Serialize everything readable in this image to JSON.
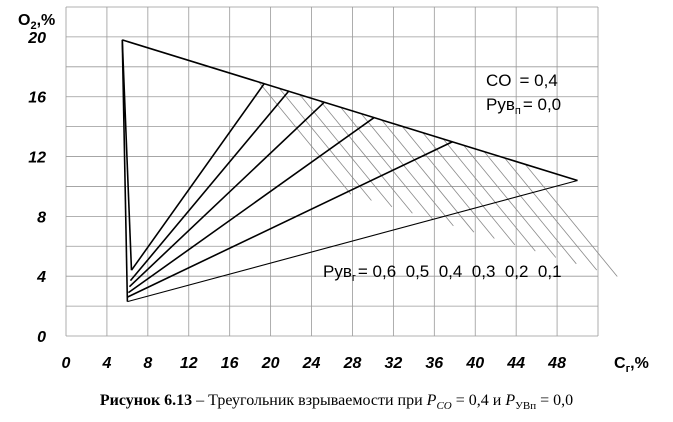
{
  "chart_data": {
    "type": "line",
    "xlabel": "C",
    "xlabel_sub": "г",
    "xlabel_unit": ",%",
    "ylabel": "O",
    "ylabel_sub": "2",
    "ylabel_unit": ",%",
    "xlim": [
      0,
      52
    ],
    "ylim": [
      0,
      22
    ],
    "x_ticks": [
      0,
      4,
      8,
      12,
      16,
      20,
      24,
      28,
      32,
      36,
      40,
      44,
      48
    ],
    "y_ticks": [
      0,
      4,
      8,
      12,
      16,
      20
    ],
    "grid": true,
    "triangle": {
      "vertices": [
        {
          "x": 5.5,
          "y": 19.8
        },
        {
          "x": 50.0,
          "y": 10.4
        },
        {
          "x": 6.0,
          "y": 2.3
        }
      ]
    },
    "left_narrow_edge": [
      {
        "x": 5.5,
        "y": 19.8
      },
      {
        "x": 6.4,
        "y": 4.4
      }
    ],
    "rays": [
      {
        "param": "0,6",
        "from": {
          "x": 6.4,
          "y": 4.4
        },
        "to": {
          "x": 19.4,
          "y": 16.9
        }
      },
      {
        "param": "0,5",
        "from": {
          "x": 6.3,
          "y": 3.7
        },
        "to": {
          "x": 21.8,
          "y": 16.4
        }
      },
      {
        "param": "0,4",
        "from": {
          "x": 6.2,
          "y": 3.3
        },
        "to": {
          "x": 25.2,
          "y": 15.6
        }
      },
      {
        "param": "0,3",
        "from": {
          "x": 6.1,
          "y": 2.9
        },
        "to": {
          "x": 30.1,
          "y": 14.6
        }
      },
      {
        "param": "0,2",
        "from": {
          "x": 6.0,
          "y": 2.6
        },
        "to": {
          "x": 37.8,
          "y": 13.0
        }
      },
      {
        "param": "0,1",
        "from": {
          "x": 6.0,
          "y": 2.3
        },
        "to": {
          "x": 50.0,
          "y": 10.4
        }
      }
    ],
    "annotations": {
      "co_label": "CO",
      "co_value": "= 0,4",
      "pyvn_label": "Pув",
      "pyvn_sub": "п",
      "pyvn_value": "= 0,0",
      "pyvg_label": "Pув",
      "pyvg_sub": "г",
      "pyvg_values": "= 0,6  0,5  0,4  0,3  0,2  0,1"
    }
  },
  "caption": {
    "bold": "Рисунок 6.13",
    "text": " – Треугольник взрываемости при ",
    "p_co_symbol": "P",
    "p_co_sub": "CO",
    "p_co_eq": " = 0,4 и ",
    "p_uvn_symbol": "P",
    "p_uvn_sub": "УВп",
    "p_uvn_eq": " = 0,0"
  }
}
